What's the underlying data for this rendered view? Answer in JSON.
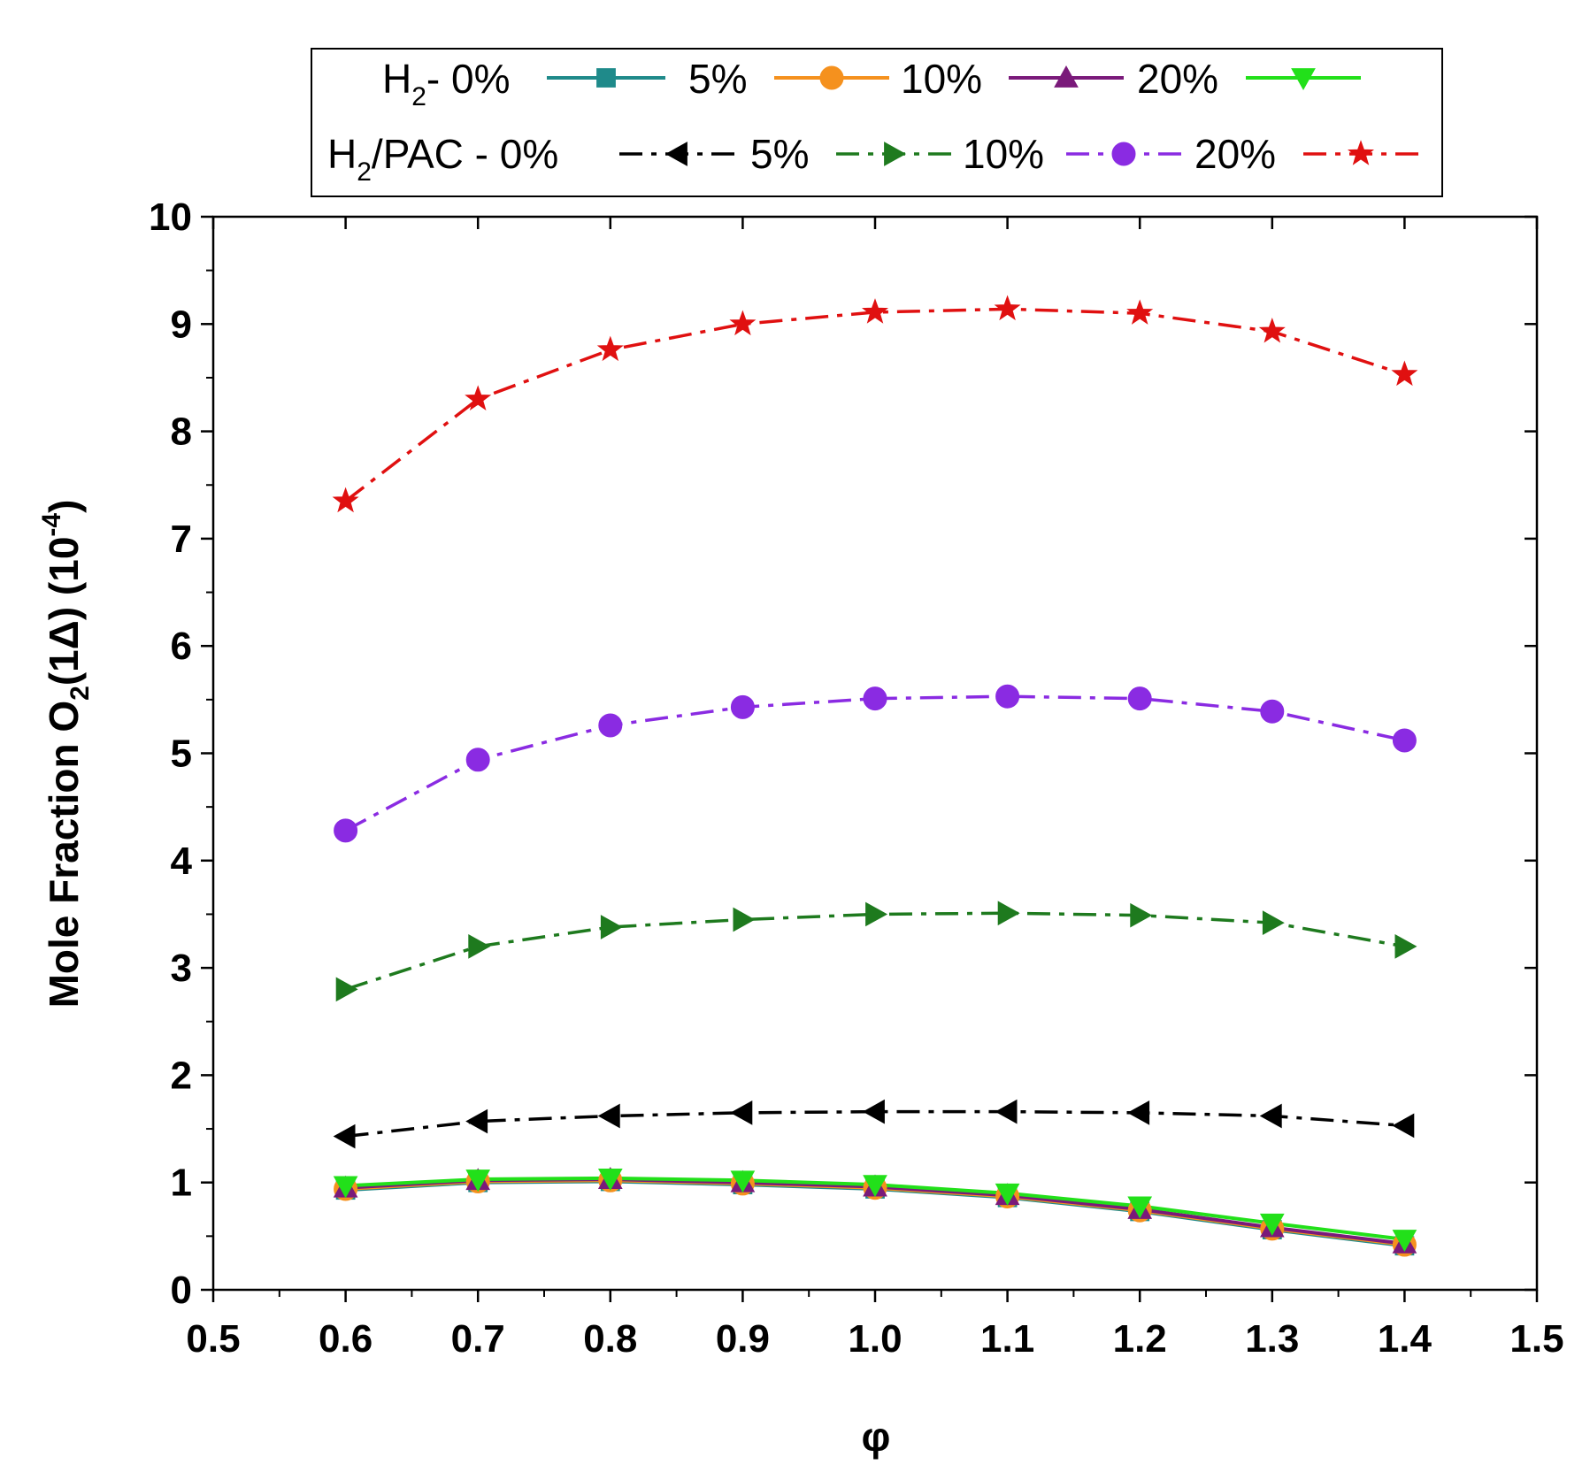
{
  "chart_data": {
    "type": "line",
    "xlabel": "φ",
    "ylabel": "Mole Fraction O2(1Δ) (10-4)",
    "ylabel_parts": {
      "main": "Mole Fraction O",
      "sub": "2",
      "paren": "(1Δ) (10",
      "sup": "-4",
      "close": ")"
    },
    "xlim": [
      0.5,
      1.5
    ],
    "ylim": [
      0,
      10
    ],
    "x_ticks": [
      0.5,
      0.6,
      0.7,
      0.8,
      0.9,
      1.0,
      1.1,
      1.2,
      1.3,
      1.4,
      1.5
    ],
    "x_tick_labels": [
      "0.5",
      "0.6",
      "0.7",
      "0.8",
      "0.9",
      "1.0",
      "1.1",
      "1.2",
      "1.3",
      "1.4",
      "1.5"
    ],
    "y_ticks": [
      0,
      1,
      2,
      3,
      4,
      5,
      6,
      7,
      8,
      9,
      10
    ],
    "y_tick_labels": [
      "0",
      "1",
      "2",
      "3",
      "4",
      "5",
      "6",
      "7",
      "8",
      "9",
      "10"
    ],
    "x": [
      0.6,
      0.7,
      0.8,
      0.9,
      1.0,
      1.1,
      1.2,
      1.3,
      1.4
    ],
    "legend": {
      "position": "top",
      "row1_prefix": {
        "main": "H",
        "sub": "2",
        "rest": "- 0%"
      },
      "row2_prefix": {
        "main": "H",
        "sub": "2",
        "rest": "/PAC - 0%"
      },
      "row1_labels": [
        "5%",
        "10%",
        "20%"
      ],
      "row2_labels": [
        "5%",
        "10%",
        "20%"
      ]
    },
    "series": [
      {
        "name": "H2 - 0%",
        "group": "H2",
        "color": "#1f8a8a",
        "marker": "square",
        "dash": "solid",
        "values": [
          0.93,
          1.0,
          1.01,
          0.98,
          0.94,
          0.86,
          0.73,
          0.56,
          0.41
        ]
      },
      {
        "name": "H2 - 5%",
        "group": "H2",
        "color": "#f5911e",
        "marker": "circle",
        "dash": "solid",
        "values": [
          0.94,
          1.01,
          1.02,
          0.99,
          0.95,
          0.87,
          0.74,
          0.57,
          0.42
        ]
      },
      {
        "name": "H2 - 10%",
        "group": "H2",
        "color": "#7a1a7a",
        "marker": "triangle-up",
        "dash": "solid",
        "values": [
          0.95,
          1.02,
          1.03,
          1.0,
          0.96,
          0.88,
          0.75,
          0.58,
          0.43
        ]
      },
      {
        "name": "H2 - 20%",
        "group": "H2",
        "color": "#22e01a",
        "marker": "triangle-down",
        "dash": "solid",
        "values": [
          0.97,
          1.03,
          1.04,
          1.02,
          0.98,
          0.9,
          0.78,
          0.62,
          0.47
        ]
      },
      {
        "name": "H2/PAC - 0%",
        "group": "H2/PAC",
        "color": "#000000",
        "marker": "triangle-left",
        "dash": "dashdot",
        "values": [
          1.43,
          1.57,
          1.62,
          1.65,
          1.66,
          1.66,
          1.65,
          1.62,
          1.53
        ]
      },
      {
        "name": "H2/PAC - 5%",
        "group": "H2/PAC",
        "color": "#1e7a1e",
        "marker": "triangle-right",
        "dash": "dashdot",
        "values": [
          2.8,
          3.2,
          3.38,
          3.45,
          3.5,
          3.51,
          3.49,
          3.42,
          3.2
        ]
      },
      {
        "name": "H2/PAC - 10%",
        "group": "H2/PAC",
        "color": "#8a2be2",
        "marker": "circle",
        "dash": "dashdot",
        "values": [
          4.28,
          4.94,
          5.26,
          5.43,
          5.51,
          5.53,
          5.51,
          5.39,
          5.12
        ]
      },
      {
        "name": "H2/PAC - 20%",
        "group": "H2/PAC",
        "color": "#e01010",
        "marker": "star",
        "dash": "dashdot",
        "values": [
          7.35,
          8.3,
          8.76,
          9.0,
          9.11,
          9.14,
          9.1,
          8.93,
          8.53
        ]
      }
    ]
  }
}
